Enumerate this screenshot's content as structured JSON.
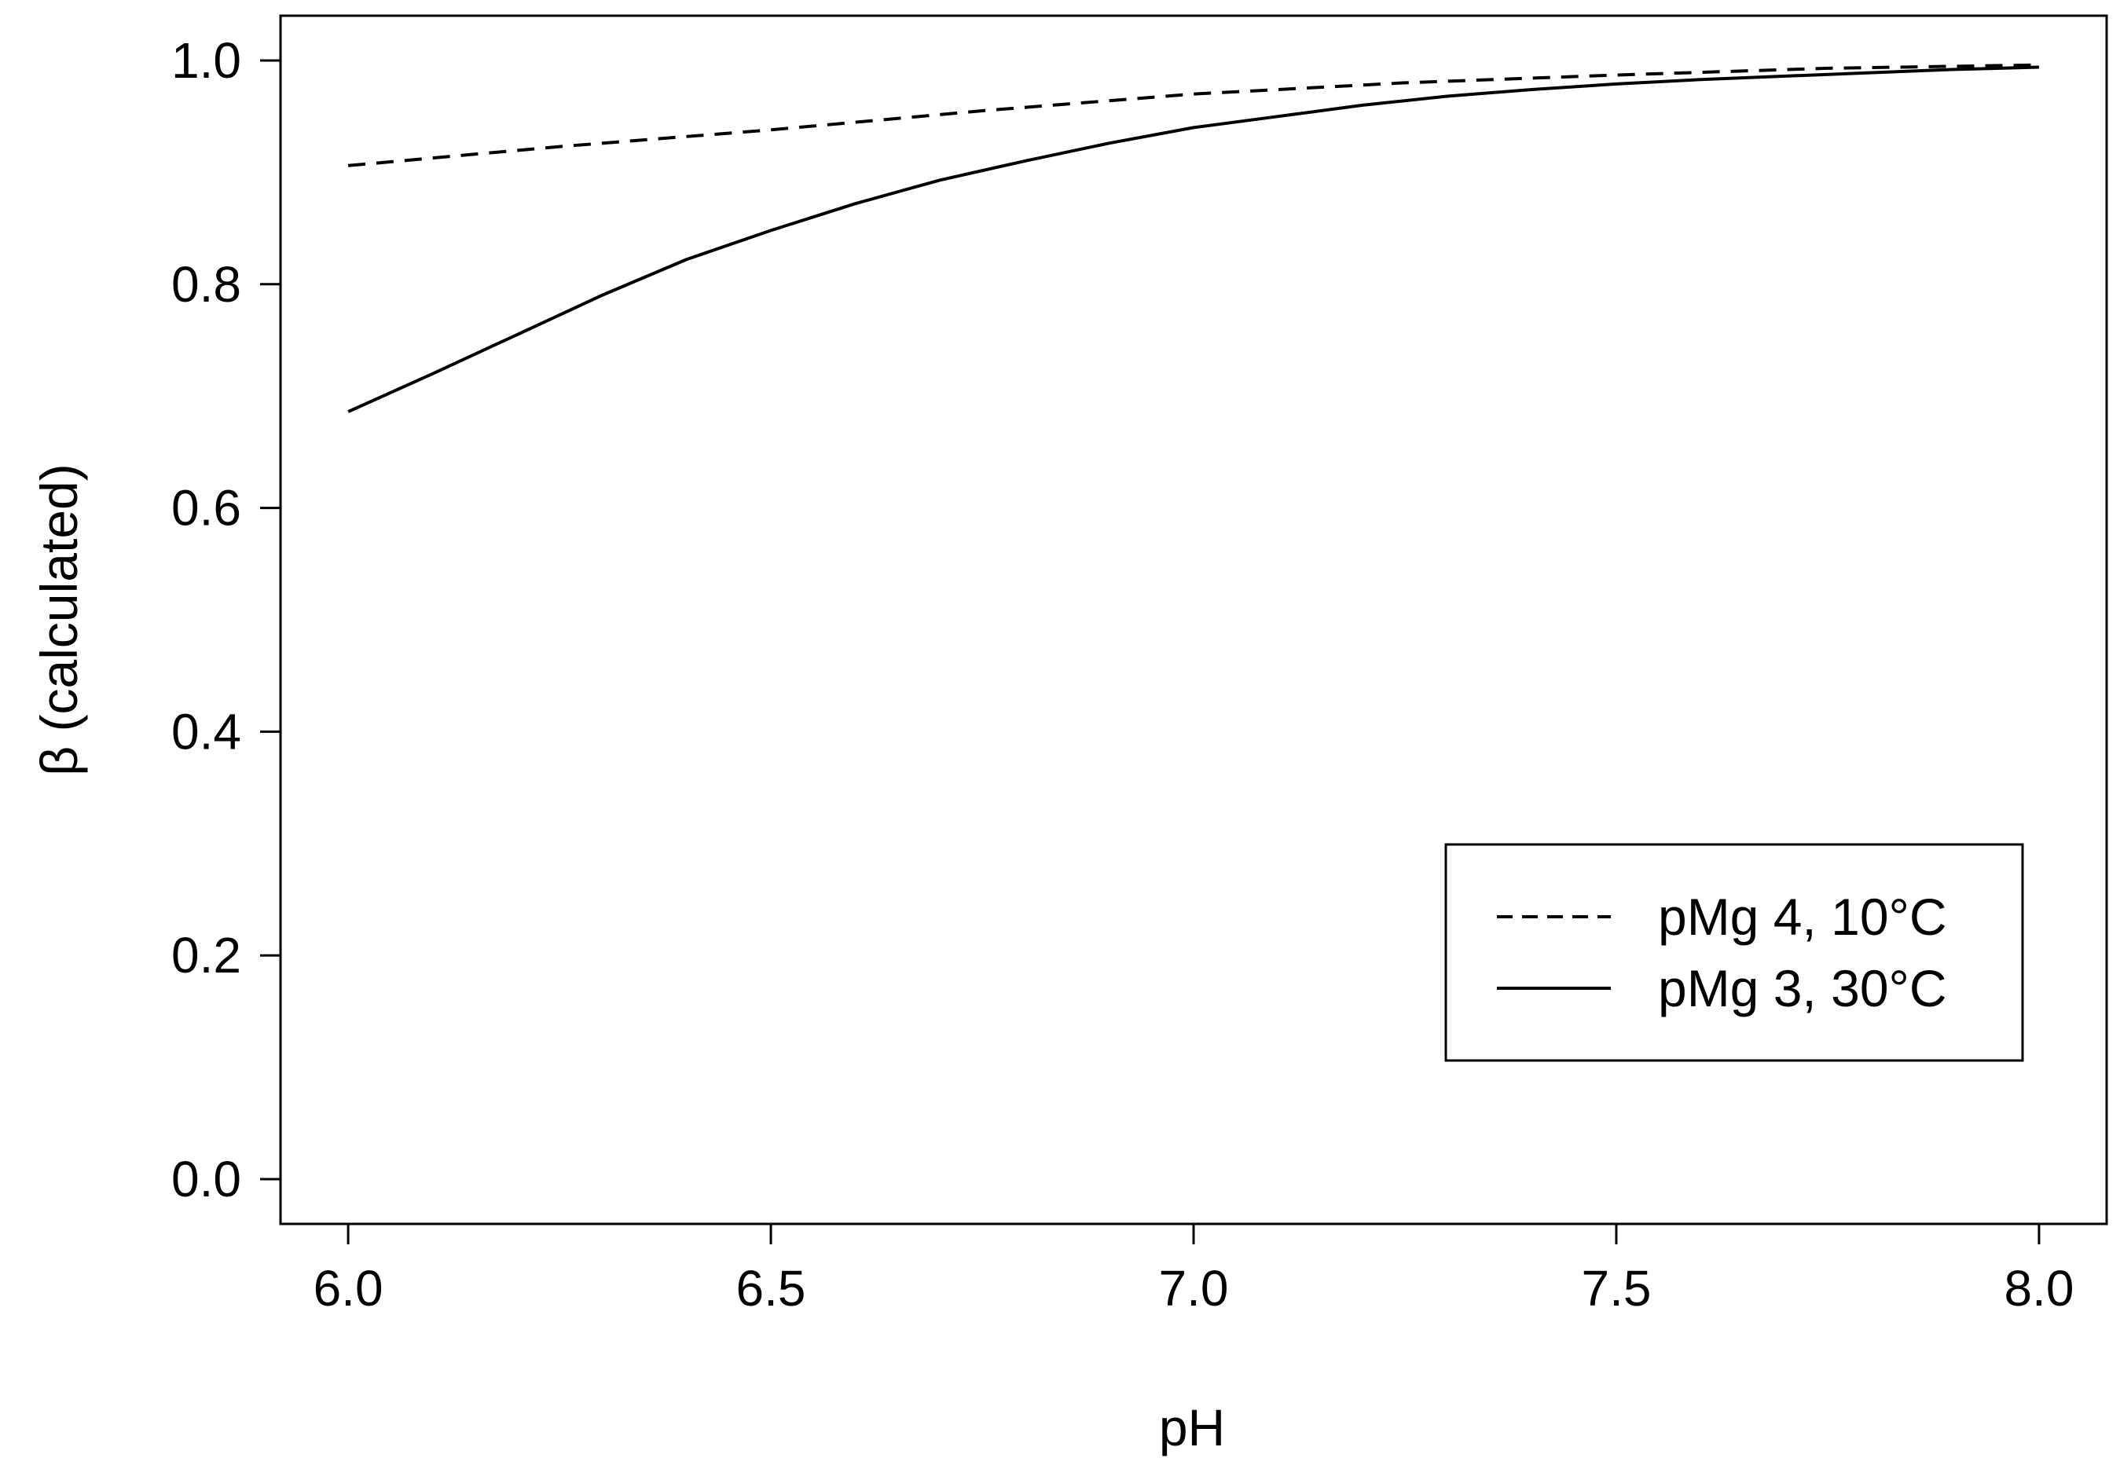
{
  "chart_data": {
    "type": "line",
    "title": "",
    "xlabel": "pH",
    "ylabel": "β (calculated)",
    "xlim": [
      5.92,
      8.08
    ],
    "ylim": [
      -0.04,
      1.04
    ],
    "xticks": [
      6.0,
      6.5,
      7.0,
      7.5,
      8.0
    ],
    "xtick_labels": [
      "6.0",
      "6.5",
      "7.0",
      "7.5",
      "8.0"
    ],
    "yticks": [
      0.0,
      0.2,
      0.4,
      0.6,
      0.8,
      1.0
    ],
    "ytick_labels": [
      "0.0",
      "0.2",
      "0.4",
      "0.6",
      "0.8",
      "1.0"
    ],
    "grid": false,
    "legend_position": "bottom-right",
    "line_color": "#000000",
    "series": [
      {
        "name": "pMg 4, 10°C",
        "style": "dashed",
        "x": [
          6.0,
          6.25,
          6.5,
          6.75,
          7.0,
          7.25,
          7.5,
          7.75,
          8.0
        ],
        "y": [
          0.906,
          0.923,
          0.938,
          0.955,
          0.97,
          0.98,
          0.987,
          0.993,
          0.996
        ]
      },
      {
        "name": "pMg 3, 30°C",
        "style": "solid",
        "x": [
          6.0,
          6.1,
          6.2,
          6.3,
          6.4,
          6.5,
          6.6,
          6.7,
          6.8,
          6.9,
          7.0,
          7.1,
          7.2,
          7.3,
          7.4,
          7.5,
          7.6,
          7.7,
          7.8,
          7.9,
          8.0
        ],
        "y": [
          0.686,
          0.72,
          0.755,
          0.79,
          0.822,
          0.848,
          0.872,
          0.893,
          0.91,
          0.926,
          0.94,
          0.95,
          0.96,
          0.968,
          0.974,
          0.979,
          0.983,
          0.986,
          0.989,
          0.992,
          0.994
        ]
      }
    ]
  }
}
